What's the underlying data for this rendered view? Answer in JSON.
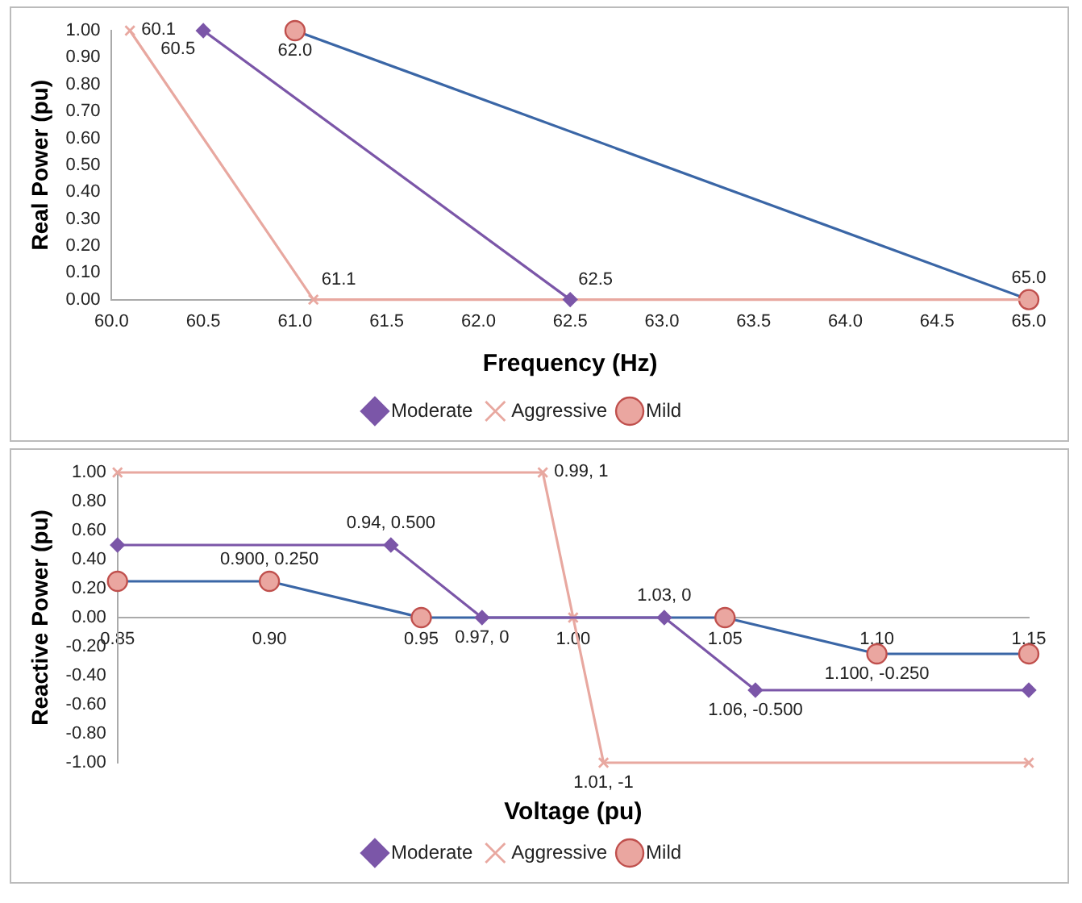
{
  "chart_data": [
    {
      "type": "line",
      "xlabel": "Frequency (Hz)",
      "ylabel": "Real Power (pu)",
      "legend": "bottom",
      "grid": false,
      "line_style": "solid",
      "xlim": [
        60.0,
        65.0
      ],
      "ylim": [
        0,
        1
      ],
      "xticks": [
        {
          "value": 60,
          "label": "60.0"
        },
        {
          "value": 60.5,
          "label": "60.5"
        },
        {
          "value": 61,
          "label": "61.0"
        },
        {
          "value": 61.5,
          "label": "61.5"
        },
        {
          "value": 62,
          "label": "62.0"
        },
        {
          "value": 62.5,
          "label": "62.5"
        },
        {
          "value": 63,
          "label": "63.0"
        },
        {
          "value": 63.5,
          "label": "63.5"
        },
        {
          "value": 64,
          "label": "64.0"
        },
        {
          "value": 64.5,
          "label": "64.5"
        },
        {
          "value": 65,
          "label": "65.0"
        }
      ],
      "yticks": [
        {
          "value": 0,
          "label": "0.00"
        },
        {
          "value": 0.1,
          "label": "0.10"
        },
        {
          "value": 0.2,
          "label": "0.20"
        },
        {
          "value": 0.3,
          "label": "0.30"
        },
        {
          "value": 0.4,
          "label": "0.40"
        },
        {
          "value": 0.5,
          "label": "0.50"
        },
        {
          "value": 0.6,
          "label": "0.60"
        },
        {
          "value": 0.7,
          "label": "0.70"
        },
        {
          "value": 0.8,
          "label": "0.80"
        },
        {
          "value": 0.9,
          "label": "0.90"
        },
        {
          "value": 1,
          "label": "1.00"
        }
      ],
      "series": [
        {
          "name": "Moderate",
          "color": "#7b56a8",
          "marker": "diamond",
          "x": [
            60.5,
            62.5
          ],
          "values": [
            1,
            0
          ]
        },
        {
          "name": "Aggressive",
          "color": "#e8a8a0",
          "marker": "cross",
          "x": [
            60.1,
            61.1,
            65.0
          ],
          "values": [
            1,
            0,
            0
          ]
        },
        {
          "name": "Mild",
          "color": "#3a66a6",
          "marker": "circle",
          "x": [
            61.0,
            65.0
          ],
          "values": [
            1,
            0
          ]
        }
      ],
      "annotations": [
        {
          "text": "60.1",
          "x": 60.1,
          "y": 1
        },
        {
          "text": "60.5",
          "x": 60.5,
          "y": 1
        },
        {
          "text": "62.0",
          "x": 61.0,
          "y": 1
        },
        {
          "text": "61.1",
          "x": 61.1,
          "y": 0
        },
        {
          "text": "62.5",
          "x": 62.5,
          "y": 0
        },
        {
          "text": "65.0",
          "x": 65.0,
          "y": 0
        }
      ]
    },
    {
      "type": "line",
      "xlabel": "Voltage (pu)",
      "ylabel": "Reactive Power (pu)",
      "legend": "bottom",
      "grid": false,
      "line_style": "solid",
      "xlim": [
        0.85,
        1.15
      ],
      "ylim": [
        -1,
        1
      ],
      "xticks": [
        {
          "value": 0.85,
          "label": "0.85"
        },
        {
          "value": 0.9,
          "label": "0.90"
        },
        {
          "value": 0.95,
          "label": "0.95"
        },
        {
          "value": 1,
          "label": "1.00"
        },
        {
          "value": 1.05,
          "label": "1.05"
        },
        {
          "value": 1.1,
          "label": "1.10"
        },
        {
          "value": 1.15,
          "label": "1.15"
        }
      ],
      "yticks": [
        {
          "value": -1,
          "label": "-1.00"
        },
        {
          "value": -0.8,
          "label": "-0.80"
        },
        {
          "value": -0.6,
          "label": "-0.60"
        },
        {
          "value": -0.4,
          "label": "-0.40"
        },
        {
          "value": -0.2,
          "label": "-0.20"
        },
        {
          "value": 0,
          "label": "0.00"
        },
        {
          "value": 0.2,
          "label": "0.20"
        },
        {
          "value": 0.4,
          "label": "0.40"
        },
        {
          "value": 0.6,
          "label": "0.60"
        },
        {
          "value": 0.8,
          "label": "0.80"
        },
        {
          "value": 1,
          "label": "1.00"
        }
      ],
      "series": [
        {
          "name": "Moderate",
          "color": "#7b56a8",
          "marker": "diamond",
          "x": [
            0.85,
            0.94,
            0.97,
            1.03,
            1.06,
            1.15
          ],
          "values": [
            0.5,
            0.5,
            0,
            0,
            -0.5,
            -0.5
          ]
        },
        {
          "name": "Aggressive",
          "color": "#e8a8a0",
          "marker": "cross",
          "x": [
            0.85,
            0.99,
            1.0,
            1.01,
            1.15
          ],
          "values": [
            1,
            1,
            0,
            -1,
            -1
          ]
        },
        {
          "name": "Mild",
          "color": "#3a66a6",
          "marker": "circle",
          "x": [
            0.85,
            0.9,
            0.95,
            1.05,
            1.1,
            1.15
          ],
          "values": [
            0.25,
            0.25,
            0,
            0,
            -0.25,
            -0.25
          ]
        }
      ],
      "annotations": [
        {
          "text": "0.94, 0.500",
          "x": 0.94,
          "y": 0.5
        },
        {
          "text": "0.97, 0",
          "x": 0.97,
          "y": 0
        },
        {
          "text": "1.03, 0",
          "x": 1.03,
          "y": 0
        },
        {
          "text": "1.06, -0.500",
          "x": 1.06,
          "y": -0.5
        },
        {
          "text": "0.99, 1",
          "x": 0.99,
          "y": 1
        },
        {
          "text": "1.01, -1",
          "x": 1.01,
          "y": -1
        },
        {
          "text": "0.900, 0.250",
          "x": 0.9,
          "y": 0.25
        },
        {
          "text": "1.100, -0.250",
          "x": 1.1,
          "y": -0.25
        }
      ]
    }
  ]
}
